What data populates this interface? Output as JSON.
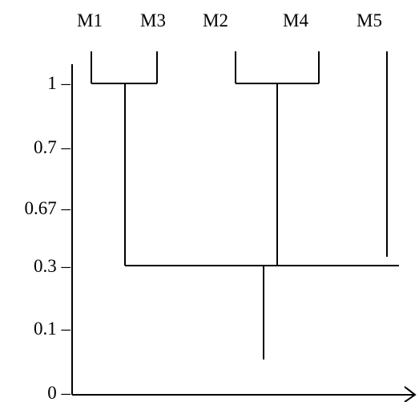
{
  "diagram": {
    "leaves": [
      {
        "id": "m1",
        "label": "M1"
      },
      {
        "id": "m3",
        "label": "M3"
      },
      {
        "id": "m2",
        "label": "M2"
      },
      {
        "id": "m4",
        "label": "M4"
      },
      {
        "id": "m5",
        "label": "M5"
      }
    ],
    "y_ticks": [
      {
        "id": "t1",
        "label": "1 –"
      },
      {
        "id": "t07",
        "label": "0.7 –"
      },
      {
        "id": "t067",
        "label": "0.67 –"
      },
      {
        "id": "t03",
        "label": "0.3 –"
      },
      {
        "id": "t01",
        "label": "0.1 –"
      },
      {
        "id": "t0",
        "label": "0 –"
      }
    ],
    "merges": [
      {
        "id": "m1-m3",
        "members": [
          "M1",
          "M3"
        ],
        "level": "1"
      },
      {
        "id": "m2-m4",
        "members": [
          "M2",
          "M4"
        ],
        "level": "1"
      },
      {
        "id": "root",
        "members": [
          "M1",
          "M3",
          "M2",
          "M4",
          "M5"
        ],
        "level": "0.3"
      }
    ],
    "line_color": "#000000",
    "text_color": "#000000"
  }
}
